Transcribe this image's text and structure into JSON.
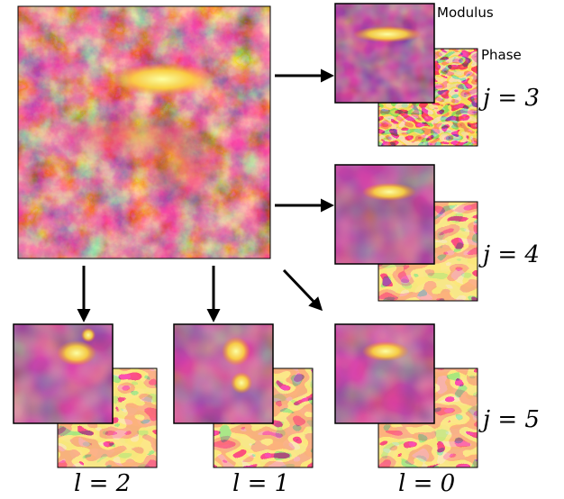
{
  "labels": {
    "modulus": "Modulus",
    "phase": "Phase",
    "j3": "j = 3",
    "j4": "j = 4",
    "j5": "j = 5",
    "l2": "l = 2",
    "l1": "l = 1",
    "l0": "l = 0"
  },
  "colors": {
    "colormap": "inferno",
    "dark": "#2a0a4a",
    "mid_dark": "#57106e",
    "mid": "#bc3754",
    "orange": "#f98e09",
    "bright": "#fcffa4",
    "arrow": "#000000"
  }
}
